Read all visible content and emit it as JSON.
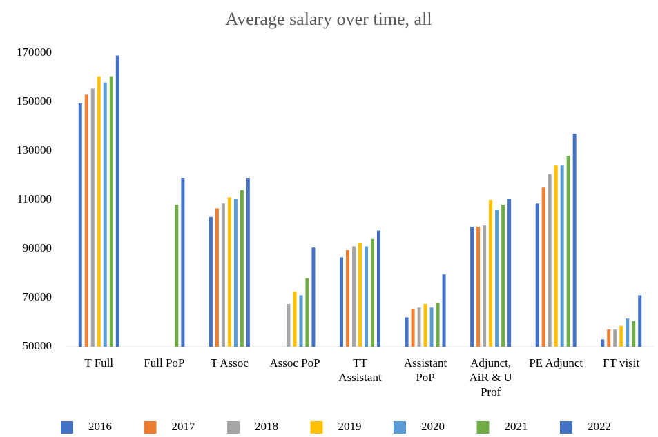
{
  "chart_data": {
    "type": "bar",
    "title": "Average salary over time, all",
    "categories": [
      "T Full",
      "Full PoP",
      "T Assoc",
      "Assoc PoP",
      "TT Assistant",
      "Assistant PoP",
      "Adjunct, AiR & U Prof",
      "PE Adjunct",
      "FT visit"
    ],
    "series": [
      {
        "name": "2016",
        "color": "#4472c4",
        "values": [
          149500,
          null,
          103000,
          null,
          86500,
          62000,
          99000,
          108500,
          53000
        ]
      },
      {
        "name": "2017",
        "color": "#ed7d31",
        "values": [
          153000,
          null,
          106500,
          null,
          89500,
          65500,
          99000,
          115000,
          57000
        ]
      },
      {
        "name": "2018",
        "color": "#a5a5a5",
        "values": [
          155500,
          null,
          108500,
          67500,
          91000,
          66000,
          99500,
          120500,
          57000
        ]
      },
      {
        "name": "2019",
        "color": "#ffc000",
        "values": [
          160500,
          null,
          111000,
          72500,
          92500,
          67500,
          110000,
          124000,
          58500
        ]
      },
      {
        "name": "2020",
        "color": "#5b9bd5",
        "values": [
          158000,
          null,
          110500,
          71000,
          91000,
          66000,
          106000,
          124000,
          61500
        ]
      },
      {
        "name": "2021",
        "color": "#70ad47",
        "values": [
          160500,
          108000,
          114000,
          78000,
          94000,
          68000,
          108000,
          128000,
          60500
        ]
      },
      {
        "name": "2022",
        "color": "#4472c4",
        "values": [
          169000,
          119000,
          119000,
          90500,
          97500,
          79500,
          110500,
          137000,
          71000
        ]
      }
    ],
    "ylim": [
      50000,
      170000
    ],
    "yticks": [
      50000,
      70000,
      90000,
      110000,
      130000,
      150000,
      170000
    ],
    "grid": false,
    "legend": "bottom"
  }
}
